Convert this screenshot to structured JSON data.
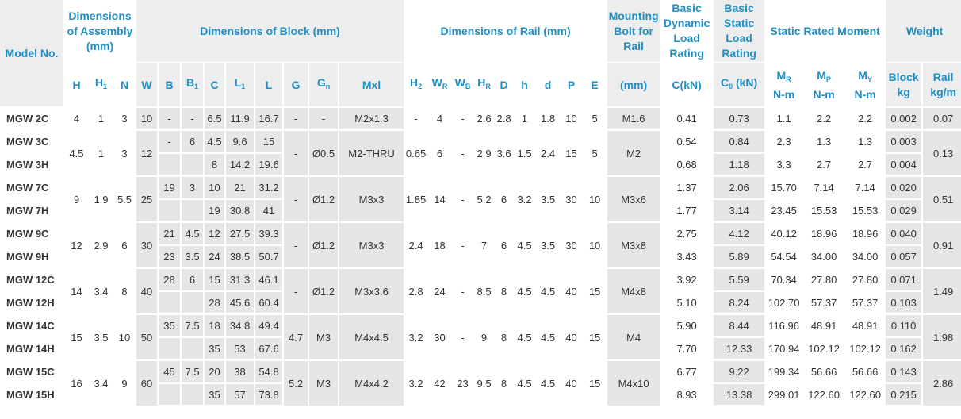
{
  "headers": {
    "model": "Model No.",
    "assembly": "Dimensions of Assembly (mm)",
    "block": "Dimensions of Block (mm)",
    "rail": "Dimensions of Rail (mm)",
    "bolt": "Mounting Bolt for Rail",
    "dynamic": "Basic Dynamic Load Rating",
    "static": "Basic Static Load Rating",
    "moment": "Static Rated Moment",
    "weight": "Weight",
    "sub": {
      "H": "H",
      "H1": "H",
      "H1_sub": "1",
      "N": "N",
      "W": "W",
      "B": "B",
      "B1": "B",
      "B1_sub": "1",
      "C": "C",
      "L1": "L",
      "L1_sub": "1",
      "L": "L",
      "G": "G",
      "Gn": "G",
      "Gn_sub": "n",
      "Mxl": "Mxl",
      "H2": "H",
      "H2_sub": "2",
      "WR": "W",
      "WR_sub": "R",
      "WB": "W",
      "WB_sub": "B",
      "HR": "H",
      "HR_sub": "R",
      "D": "D",
      "h": "h",
      "d": "d",
      "P": "P",
      "E": "E",
      "bolt_unit": "(mm)",
      "dyn_unit": "C(kN)",
      "stat_unit": "C",
      "stat_sub": "0",
      "stat_unit2": " (kN)",
      "MR": "M",
      "MR_sub": "R",
      "MP": "M",
      "MP_sub": "P",
      "MY": "M",
      "MY_sub": "Y",
      "moment_unit": "N-m",
      "block_w": "Block",
      "block_unit": "kg",
      "rail_w": "Rail",
      "rail_unit": "kg/m"
    }
  },
  "rows": [
    {
      "model": "MGW 2C",
      "H": "4",
      "H1": "1",
      "N": "3",
      "W": "10",
      "B": "-",
      "B1": "-",
      "C": "6.5",
      "L1": "11.9",
      "L": "16.7",
      "G": "-",
      "Gn": "-",
      "Mxl": "M2x1.3",
      "H2": "-",
      "WR": "4",
      "WB": "-",
      "HR": "2.6",
      "D": "2.8",
      "h": "1",
      "d": "1.8",
      "P": "10",
      "E": "5",
      "bolt": "M1.6",
      "dyn": "0.41",
      "stat": "0.73",
      "MR": "1.1",
      "MP": "2.2",
      "MY": "2.2",
      "wblock": "0.002",
      "wrail": "0.07"
    },
    {
      "model": "MGW 3C",
      "H": "4.5",
      "H1": "1",
      "N": "3",
      "W": "12",
      "B": "-",
      "B1": "6",
      "C": "4.5",
      "L1": "9.6",
      "L": "15",
      "G": "-",
      "Gn": "Ø0.5",
      "Mxl": "M2-THRU",
      "H2": "0.65",
      "WR": "6",
      "WB": "-",
      "HR": "2.9",
      "D": "3.6",
      "h": "1.5",
      "d": "2.4",
      "P": "15",
      "E": "5",
      "bolt": "M2",
      "dyn": "0.54",
      "stat": "0.84",
      "MR": "2.3",
      "MP": "1.3",
      "MY": "1.3",
      "wblock": "0.003",
      "wrail": "0.13"
    },
    {
      "model": "MGW 3H",
      "C": "8",
      "L1": "14.2",
      "L": "19.6",
      "dyn": "0.68",
      "stat": "1.18",
      "MR": "3.3",
      "MP": "2.7",
      "MY": "2.7",
      "wblock": "0.004"
    },
    {
      "model": "MGW 7C",
      "H": "9",
      "H1": "1.9",
      "N": "5.5",
      "W": "25",
      "B": "19",
      "B1": "3",
      "C": "10",
      "L1": "21",
      "L": "31.2",
      "G": "-",
      "Gn": "Ø1.2",
      "Mxl": "M3x3",
      "H2": "1.85",
      "WR": "14",
      "WB": "-",
      "HR": "5.2",
      "D": "6",
      "h": "3.2",
      "d": "3.5",
      "P": "30",
      "E": "10",
      "bolt": "M3x6",
      "dyn": "1.37",
      "stat": "2.06",
      "MR": "15.70",
      "MP": "7.14",
      "MY": "7.14",
      "wblock": "0.020",
      "wrail": "0.51"
    },
    {
      "model": "MGW 7H",
      "C": "19",
      "L1": "30.8",
      "L": "41",
      "dyn": "1.77",
      "stat": "3.14",
      "MR": "23.45",
      "MP": "15.53",
      "MY": "15.53",
      "wblock": "0.029"
    },
    {
      "model": "MGW 9C",
      "H": "12",
      "H1": "2.9",
      "N": "6",
      "W": "30",
      "B": "21",
      "B1": "4.5",
      "C": "12",
      "L1": "27.5",
      "L": "39.3",
      "G": "-",
      "Gn": "Ø1.2",
      "Mxl": "M3x3",
      "H2": "2.4",
      "WR": "18",
      "WB": "-",
      "HR": "7",
      "D": "6",
      "h": "4.5",
      "d": "3.5",
      "P": "30",
      "E": "10",
      "bolt": "M3x8",
      "dyn": "2.75",
      "stat": "4.12",
      "MR": "40.12",
      "MP": "18.96",
      "MY": "18.96",
      "wblock": "0.040",
      "wrail": "0.91"
    },
    {
      "model": "MGW 9H",
      "B": "23",
      "B1": "3.5",
      "C": "24",
      "L1": "38.5",
      "L": "50.7",
      "dyn": "3.43",
      "stat": "5.89",
      "MR": "54.54",
      "MP": "34.00",
      "MY": "34.00",
      "wblock": "0.057"
    },
    {
      "model": "MGW 12C",
      "H": "14",
      "H1": "3.4",
      "N": "8",
      "W": "40",
      "B": "28",
      "B1": "6",
      "C": "15",
      "L1": "31.3",
      "L": "46.1",
      "G": "-",
      "Gn": "Ø1.2",
      "Mxl": "M3x3.6",
      "H2": "2.8",
      "WR": "24",
      "WB": "-",
      "HR": "8.5",
      "D": "8",
      "h": "4.5",
      "d": "4.5",
      "P": "40",
      "E": "15",
      "bolt": "M4x8",
      "dyn": "3.92",
      "stat": "5.59",
      "MR": "70.34",
      "MP": "27.80",
      "MY": "27.80",
      "wblock": "0.071",
      "wrail": "1.49"
    },
    {
      "model": "MGW 12H",
      "C": "28",
      "L1": "45.6",
      "L": "60.4",
      "dyn": "5.10",
      "stat": "8.24",
      "MR": "102.70",
      "MP": "57.37",
      "MY": "57.37",
      "wblock": "0.103"
    },
    {
      "model": "MGW 14C",
      "H": "15",
      "H1": "3.5",
      "N": "10",
      "W": "50",
      "B": "35",
      "B1": "7.5",
      "C": "18",
      "L1": "34.8",
      "L": "49.4",
      "G": "4.7",
      "Gn": "M3",
      "Mxl": "M4x4.5",
      "H2": "3.2",
      "WR": "30",
      "WB": "-",
      "HR": "9",
      "D": "8",
      "h": "4.5",
      "d": "4.5",
      "P": "40",
      "E": "15",
      "bolt": "M4",
      "dyn": "5.90",
      "stat": "8.44",
      "MR": "116.96",
      "MP": "48.91",
      "MY": "48.91",
      "wblock": "0.110",
      "wrail": "1.98"
    },
    {
      "model": "MGW 14H",
      "C": "35",
      "L1": "53",
      "L": "67.6",
      "dyn": "7.70",
      "stat": "12.33",
      "MR": "170.94",
      "MP": "102.12",
      "MY": "102.12",
      "wblock": "0.162"
    },
    {
      "model": "MGW 15C",
      "H": "16",
      "H1": "3.4",
      "N": "9",
      "W": "60",
      "B": "45",
      "B1": "7.5",
      "C": "20",
      "L1": "38",
      "L": "54.8",
      "G": "5.2",
      "Gn": "M3",
      "Mxl": "M4x4.2",
      "H2": "3.2",
      "WR": "42",
      "WB": "23",
      "HR": "9.5",
      "D": "8",
      "h": "4.5",
      "d": "4.5",
      "P": "40",
      "E": "15",
      "bolt": "M4x10",
      "dyn": "6.77",
      "stat": "9.22",
      "MR": "199.34",
      "MP": "56.66",
      "MY": "56.66",
      "wblock": "0.143",
      "wrail": "2.86"
    },
    {
      "model": "MGW 15H",
      "C": "35",
      "L1": "57",
      "L": "73.8",
      "dyn": "8.93",
      "stat": "13.38",
      "MR": "299.01",
      "MP": "122.60",
      "MY": "122.60",
      "wblock": "0.215"
    }
  ]
}
